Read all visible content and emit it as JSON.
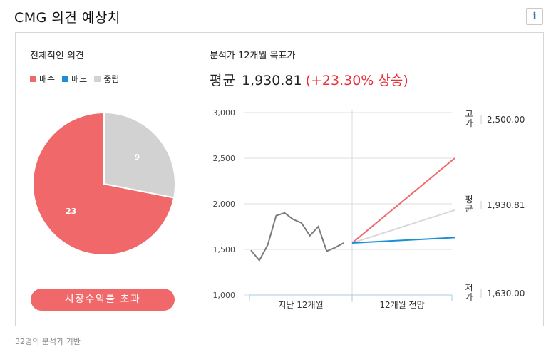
{
  "header": {
    "title": "CMG 의견 예상치",
    "info_label": "i"
  },
  "left": {
    "title": "전체적인 의견",
    "legend": [
      {
        "label": "매수",
        "color": "#f0686a"
      },
      {
        "label": "매도",
        "color": "#1b8fd6"
      },
      {
        "label": "중립",
        "color": "#d2d2d2"
      }
    ],
    "button_label": "시장수익률 초과"
  },
  "right": {
    "title": "분석가 12개월 목표가",
    "avg_label": "평균",
    "avg_value": "1,930.81",
    "avg_change": "(+23.30% 상승)"
  },
  "footer": "32명의 분석가 기반",
  "chart_data": [
    {
      "type": "pie",
      "slices": [
        {
          "label": "매수",
          "value": 23,
          "color": "#f0686a"
        },
        {
          "label": "매도",
          "value": 0,
          "color": "#1b8fd6"
        },
        {
          "label": "중립",
          "value": 9,
          "color": "#d2d2d2"
        }
      ]
    },
    {
      "type": "line",
      "ylim": [
        1000,
        3000
      ],
      "yticks": [
        {
          "label": "3,000",
          "v": 3000
        },
        {
          "label": "2,500",
          "v": 2500
        },
        {
          "label": "2,000",
          "v": 2000
        },
        {
          "label": "1,500",
          "v": 1500
        },
        {
          "label": "1,000",
          "v": 1000
        }
      ],
      "x_sections": [
        "지난 12개월",
        "12개월 전망"
      ],
      "history": [
        1490,
        1380,
        1550,
        1870,
        1900,
        1830,
        1790,
        1650,
        1750,
        1480,
        1520,
        1570
      ],
      "start_value": 1570,
      "projections": [
        {
          "name": "고가",
          "value": 2500.0,
          "label": "2,500.00",
          "color": "#f0686a"
        },
        {
          "name": "평균",
          "value": 1930.81,
          "label": "1,930.81",
          "color": "#d8d8d8"
        },
        {
          "name": "저가",
          "value": 1630.0,
          "label": "1,630.00",
          "color": "#1b8fd6"
        }
      ],
      "history_color": "#7a7a7a"
    }
  ]
}
